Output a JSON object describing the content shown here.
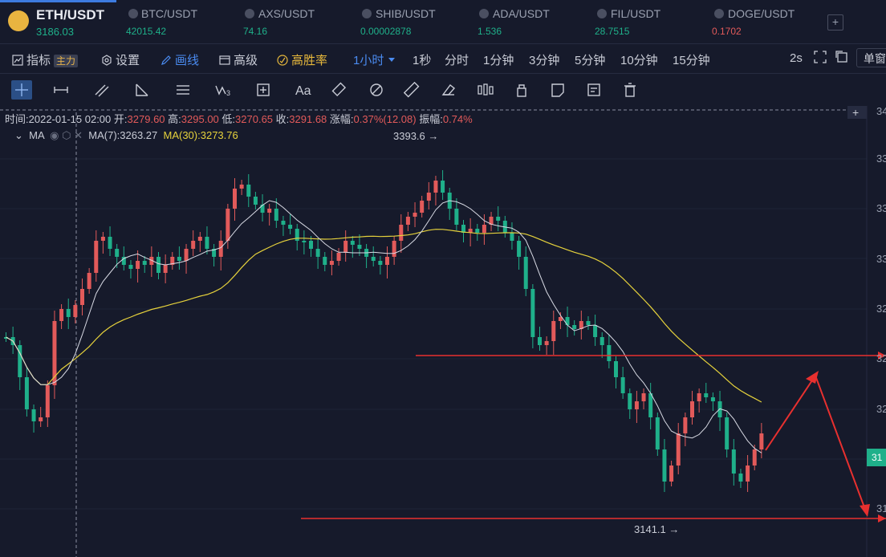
{
  "tickers": [
    {
      "name": "ETH/USDT",
      "price": "3186.03",
      "color": "#1fb08a",
      "active": true
    },
    {
      "name": "BTC/USDT",
      "price": "42015.42",
      "color": "#1fb08a"
    },
    {
      "name": "AXS/USDT",
      "price": "74.16",
      "color": "#1fb08a"
    },
    {
      "name": "SHIB/USDT",
      "price": "0.00002878",
      "color": "#1fb08a"
    },
    {
      "name": "ADA/USDT",
      "price": "1.536",
      "color": "#1fb08a"
    },
    {
      "name": "FIL/USDT",
      "price": "28.7515",
      "color": "#1fb08a"
    },
    {
      "name": "DOGE/USDT",
      "price": "0.1702",
      "color": "#e25a5a"
    }
  ],
  "toolbar": {
    "indicator_label": "指标",
    "indicator_badge": "主力",
    "settings_label": "设置",
    "draw_label": "画线",
    "advanced_label": "高级",
    "winrate_label": "高胜率",
    "interval_selected": "1小时",
    "intervals": [
      "1秒",
      "分时",
      "1分钟",
      "3分钟",
      "5分钟",
      "10分钟",
      "15分钟"
    ],
    "refresh": "2s",
    "single_label": "单窗"
  },
  "info": {
    "time_label": "时间:",
    "time": "2022-01-15 02:00",
    "open_label": "开:",
    "open": "3279.60",
    "high_label": "高:",
    "high": "3295.00",
    "low_label": "低:",
    "low": "3270.65",
    "close_label": "收:",
    "close": "3291.68",
    "change_label": "涨幅:",
    "change": "0.37%(12.08)",
    "amp_label": "振幅:",
    "amp": "0.74%"
  },
  "ma": {
    "label": "MA",
    "ma7": "MA(7):3263.27",
    "ma30": "MA(30):3273.76"
  },
  "chart_data": {
    "type": "candlestick",
    "high_marker": "3393.6 →",
    "low_marker": "3141.1 →",
    "last_price_tag": "31",
    "axis_labels": [
      "34",
      "33",
      "33",
      "33",
      "32",
      "32",
      "32",
      "31",
      "31"
    ],
    "support_levels": [
      3238,
      3143
    ],
    "colors": {
      "up": "#e25a5a",
      "down": "#1fb08a",
      "ma7": "#d8dae4",
      "ma30": "#e6d23c",
      "line": "#e8302f"
    }
  }
}
